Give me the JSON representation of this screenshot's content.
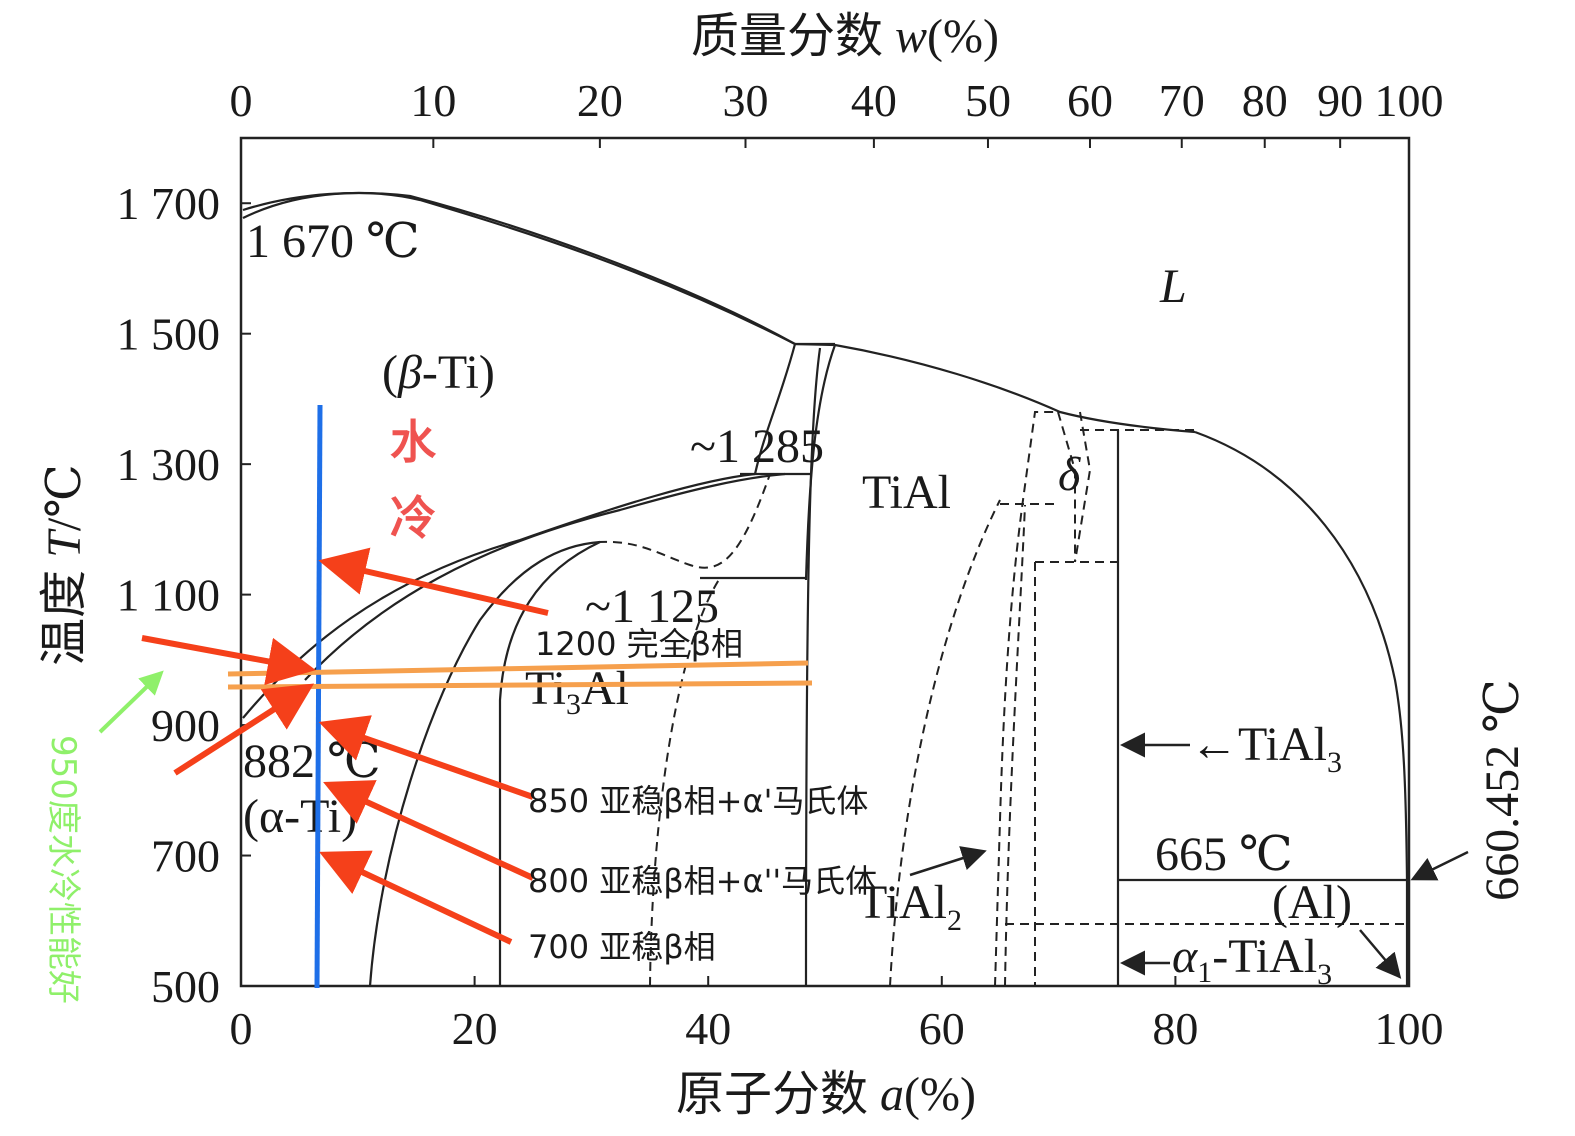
{
  "diagram": {
    "top_axis": {
      "title_zh": "质量分数",
      "title_var": "w",
      "title_unit": "(%)",
      "ticks": [
        {
          "label": "0",
          "value": 0
        },
        {
          "label": "10",
          "value": 10
        },
        {
          "label": "20",
          "value": 20
        },
        {
          "label": "30",
          "value": 30
        },
        {
          "label": "40",
          "value": 40
        },
        {
          "label": "50",
          "value": 50
        },
        {
          "label": "60",
          "value": 60
        },
        {
          "label": "70",
          "value": 70
        },
        {
          "label": "80",
          "value": 80
        },
        {
          "label": "90",
          "value": 90
        },
        {
          "label": "100",
          "value": 100
        }
      ]
    },
    "bottom_axis": {
      "title_zh": "原子分数",
      "title_var": "a",
      "title_unit": "(%)",
      "ticks": [
        {
          "label": "0",
          "value": 0
        },
        {
          "label": "20",
          "value": 20
        },
        {
          "label": "40",
          "value": 40
        },
        {
          "label": "60",
          "value": 60
        },
        {
          "label": "80",
          "value": 80
        },
        {
          "label": "100",
          "value": 100
        }
      ]
    },
    "left_axis": {
      "title_zh": "温度",
      "title_var": "T",
      "title_unit": "/℃",
      "ticks": [
        {
          "label": "1 700",
          "value": 1700
        },
        {
          "label": "1 500",
          "value": 1500
        },
        {
          "label": "1 300",
          "value": 1300
        },
        {
          "label": "1 100",
          "value": 1100
        },
        {
          "label": "900",
          "value": 900
        },
        {
          "label": "700",
          "value": 700
        },
        {
          "label": "500",
          "value": 500
        }
      ]
    },
    "phases": {
      "liquid": "L",
      "beta_ti_open": "(",
      "beta_symbol": "β",
      "beta_ti_rest": "-Ti)",
      "tial": "TiAl",
      "delta": "δ",
      "ti3al_a": "Ti",
      "ti3al_sub": "3",
      "ti3al_b": "Al",
      "alpha_ti": "(α-Ti)",
      "tial3_arrow": "←TiAl",
      "tial3_sub": "3",
      "tial2": "TiAl",
      "tial2_sub": "2",
      "al": "(Al)",
      "alpha1_arrow": "←",
      "alpha1_symbol": "α",
      "alpha1_sub": "1",
      "alpha1_rest": "-TiAl",
      "alpha1_sub2": "3"
    },
    "temperatures": {
      "t1670": "1 670 ℃",
      "t1285": "~1 285",
      "t1125": "~1 125",
      "t882": "882 ℃",
      "t665": "665 ℃",
      "t660": "660.452 ℃"
    },
    "annotations": {
      "water": "水",
      "cold": "冷",
      "quench_950": "950度水冷性能好",
      "state_1200": "1200 完全β相",
      "state_850": "850 亚稳β相+α'马氏体",
      "state_800": "800 亚稳β相+α''马氏体",
      "state_700": "700 亚稳β相"
    },
    "colors": {
      "axis": "#222222",
      "blue_line": "#1e6fe8",
      "orange_line": "#f6a04d",
      "red_arrow": "#f5401a",
      "green_arrow": "#8ff06a",
      "red_text": "#ef5350"
    }
  }
}
